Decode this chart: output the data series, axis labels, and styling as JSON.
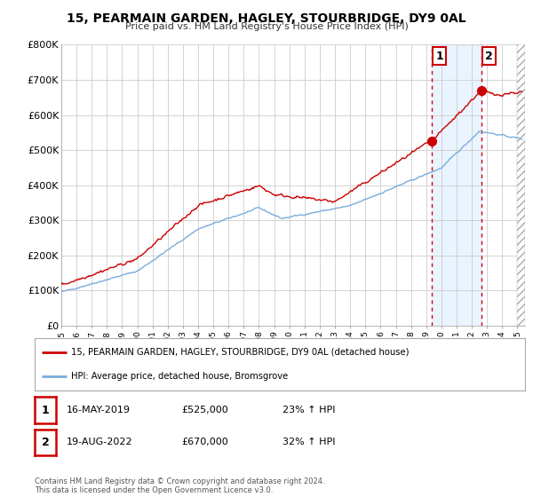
{
  "title": "15, PEARMAIN GARDEN, HAGLEY, STOURBRIDGE, DY9 0AL",
  "subtitle": "Price paid vs. HM Land Registry's House Price Index (HPI)",
  "ylim": [
    0,
    800000
  ],
  "yticks": [
    0,
    100000,
    200000,
    300000,
    400000,
    500000,
    600000,
    700000,
    800000
  ],
  "ytick_labels": [
    "£0",
    "£100K",
    "£200K",
    "£300K",
    "£400K",
    "£500K",
    "£600K",
    "£700K",
    "£800K"
  ],
  "red_color": "#cc0000",
  "blue_color": "#7aacdc",
  "vertical_line_color": "#cc0000",
  "sale1_year": 2019.37,
  "sale1_price": 525000,
  "sale1_label": "1",
  "sale2_year": 2022.62,
  "sale2_price": 670000,
  "sale2_label": "2",
  "legend_line1": "15, PEARMAIN GARDEN, HAGLEY, STOURBRIDGE, DY9 0AL (detached house)",
  "legend_line2": "HPI: Average price, detached house, Bromsgrove",
  "table_row1_num": "1",
  "table_row1_date": "16-MAY-2019",
  "table_row1_price": "£525,000",
  "table_row1_hpi": "23% ↑ HPI",
  "table_row2_num": "2",
  "table_row2_date": "19-AUG-2022",
  "table_row2_price": "£670,000",
  "table_row2_hpi": "32% ↑ HPI",
  "footnote": "Contains HM Land Registry data © Crown copyright and database right 2024.\nThis data is licensed under the Open Government Licence v3.0.",
  "bg_color": "#ffffff",
  "plot_bg": "#ffffff",
  "grid_color": "#cccccc",
  "shade_color": "#ddeeff"
}
